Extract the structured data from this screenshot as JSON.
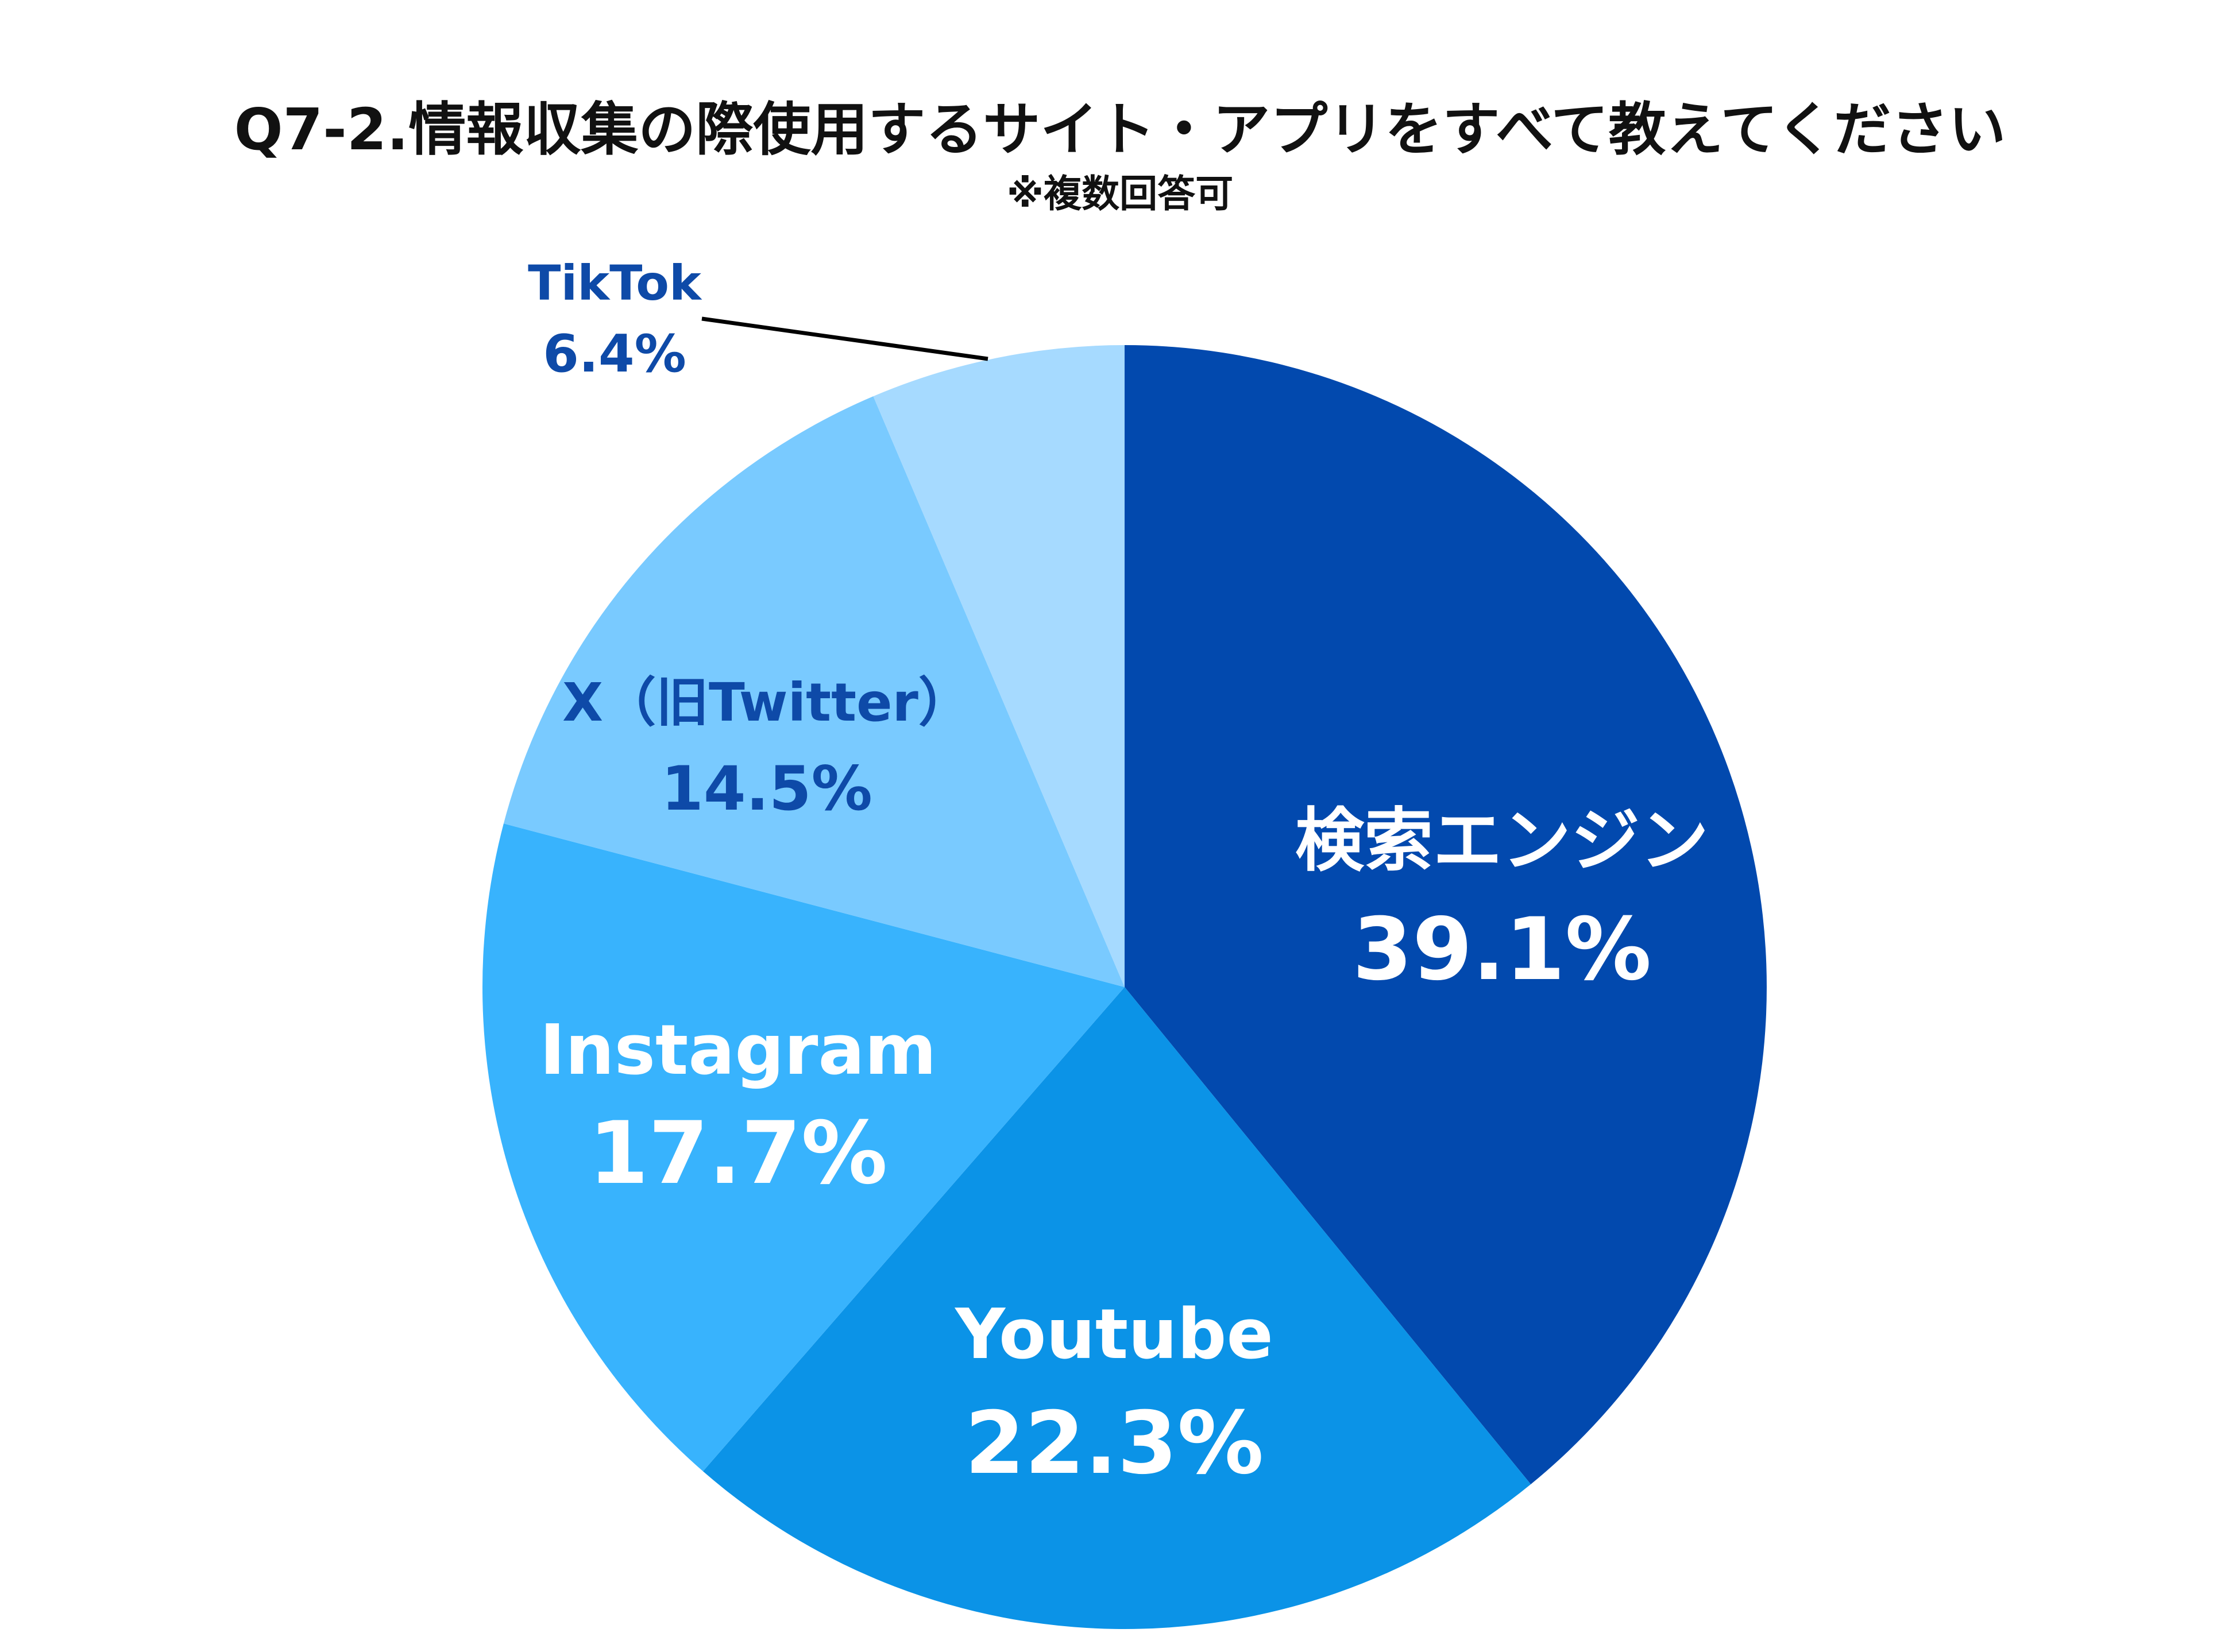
{
  "chart_data": {
    "type": "pie",
    "title": "Q7-2.情報収集の際使用するサイト・アプリをすべて教えてください",
    "subtitle": "※複数回答可",
    "slices": [
      {
        "label": "検索エンジン",
        "value_label": "39.1%",
        "value": 39.1,
        "color": "#0249ae",
        "text_color": "#ffffff"
      },
      {
        "label": "Youtube",
        "value_label": "22.3%",
        "value": 22.3,
        "color": "#0b93e7",
        "text_color": "#ffffff"
      },
      {
        "label": "Instagram",
        "value_label": "17.7%",
        "value": 17.7,
        "color": "#38b3fd",
        "text_color": "#ffffff"
      },
      {
        "label": "X（旧Twitter）",
        "value_label": "14.5%",
        "value": 14.5,
        "color": "#79caff",
        "text_color": "#0e4aa8"
      },
      {
        "label": "TikTok",
        "value_label": "6.4%",
        "value": 6.4,
        "color": "#a6daff",
        "text_color": "#0e4aa8"
      }
    ],
    "start_angle": "12 o'clock",
    "direction": "clockwise",
    "legend": "none"
  }
}
